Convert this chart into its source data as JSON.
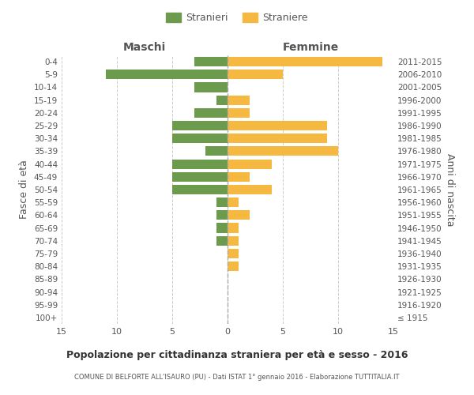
{
  "age_groups": [
    "100+",
    "95-99",
    "90-94",
    "85-89",
    "80-84",
    "75-79",
    "70-74",
    "65-69",
    "60-64",
    "55-59",
    "50-54",
    "45-49",
    "40-44",
    "35-39",
    "30-34",
    "25-29",
    "20-24",
    "15-19",
    "10-14",
    "5-9",
    "0-4"
  ],
  "birth_years": [
    "≤ 1915",
    "1916-1920",
    "1921-1925",
    "1926-1930",
    "1931-1935",
    "1936-1940",
    "1941-1945",
    "1946-1950",
    "1951-1955",
    "1956-1960",
    "1961-1965",
    "1966-1970",
    "1971-1975",
    "1976-1980",
    "1981-1985",
    "1986-1990",
    "1991-1995",
    "1996-2000",
    "2001-2005",
    "2006-2010",
    "2011-2015"
  ],
  "maschi": [
    0,
    0,
    0,
    0,
    0,
    0,
    1,
    1,
    1,
    1,
    5,
    5,
    5,
    2,
    5,
    5,
    3,
    1,
    3,
    11,
    3
  ],
  "femmine": [
    0,
    0,
    0,
    0,
    1,
    1,
    1,
    1,
    2,
    1,
    4,
    2,
    4,
    10,
    9,
    9,
    2,
    2,
    0,
    5,
    14
  ],
  "color_maschi": "#6d9b4e",
  "color_femmine": "#f5b942",
  "title": "Popolazione per cittadinanza straniera per età e sesso - 2016",
  "subtitle": "COMUNE DI BELFORTE ALL'ISAURO (PU) - Dati ISTAT 1° gennaio 2016 - Elaborazione TUTTITALIA.IT",
  "ylabel_left": "Fasce di età",
  "ylabel_right": "Anni di nascita",
  "xlabel_left": "Maschi",
  "xlabel_right": "Femmine",
  "legend_maschi": "Stranieri",
  "legend_femmine": "Straniere",
  "xlim": 15,
  "background_color": "#ffffff",
  "grid_color": "#cccccc",
  "text_color": "#555555"
}
